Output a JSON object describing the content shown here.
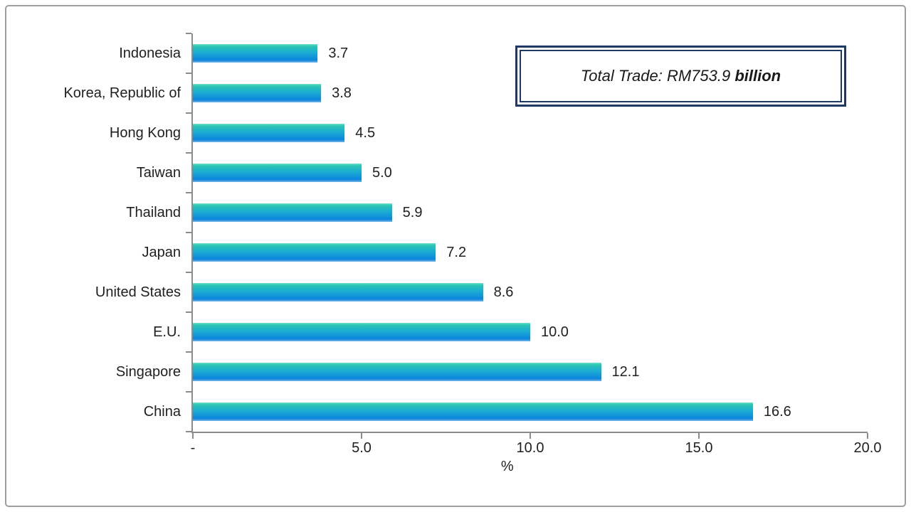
{
  "frame": {
    "border_color": "#9e9e9e"
  },
  "annotation": {
    "text_italic": "Total Trade: RM753.9 ",
    "text_bold": "billion",
    "border_color": "#1F3864"
  },
  "chart_data": {
    "type": "bar",
    "orientation": "horizontal",
    "title": "",
    "xlabel": "%",
    "ylabel": "",
    "categories": [
      "Indonesia",
      "Korea, Republic of",
      "Hong Kong",
      "Taiwan",
      "Thailand",
      "Japan",
      "United States",
      "E.U.",
      "Singapore",
      "China"
    ],
    "values": [
      3.7,
      3.8,
      4.5,
      5.0,
      5.9,
      7.2,
      8.6,
      10.0,
      12.1,
      16.6
    ],
    "value_labels": [
      "3.7",
      "3.8",
      "4.5",
      "5.0",
      "5.9",
      "7.2",
      "8.6",
      "10.0",
      "12.1",
      "16.6"
    ],
    "xlim": [
      0,
      20
    ],
    "x_ticks": [
      0,
      5,
      10,
      15,
      20
    ],
    "x_tick_labels": [
      "-",
      "5.0",
      "10.0",
      "15.0",
      "20.0"
    ],
    "grid": false,
    "legend_position": "none",
    "axis_color": "#8c8c8c",
    "text_color": "#1f1f1f",
    "bar_gradient": [
      "#6FDECC 0%",
      "#2BC4B2 12%",
      "#1BADD3 45%",
      "#0C85DC 86%",
      "#58A9E4 97%",
      "#8CC0EA 100%"
    ]
  }
}
